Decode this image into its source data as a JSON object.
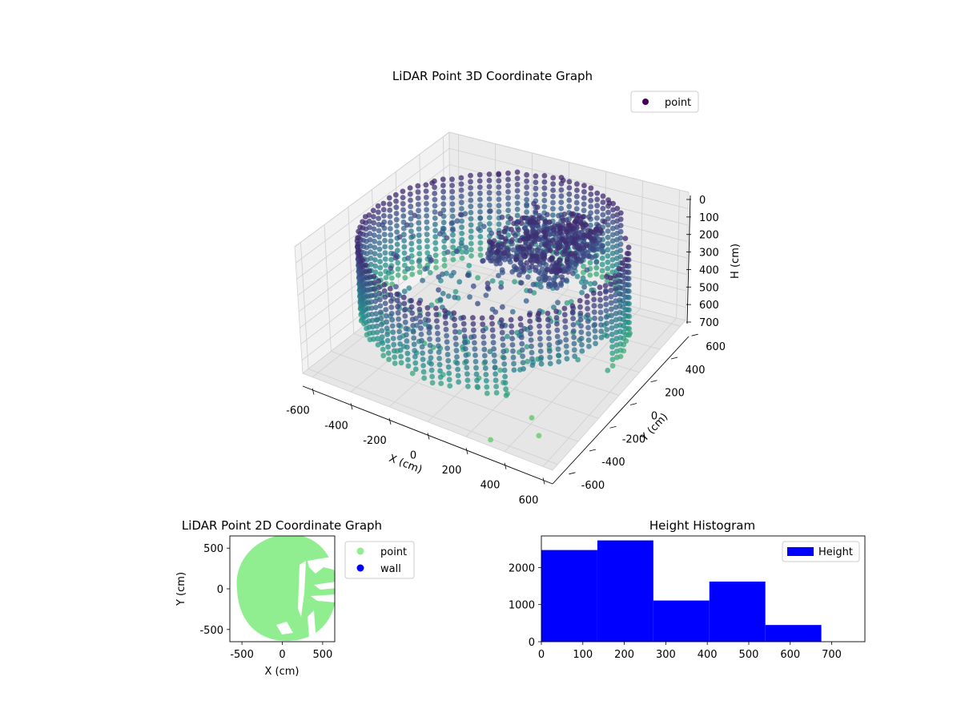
{
  "chart_data": [
    {
      "type": "scatter",
      "projection": "3d",
      "title": "LiDAR Point 3D Coordinate Graph",
      "xlabel": "X (cm)",
      "ylabel": "Y (cm)",
      "zlabel": "H (cm)",
      "xlim": [
        -650,
        650
      ],
      "ylim": [
        -650,
        650
      ],
      "zlim": [
        780,
        0
      ],
      "zaxis_inverted": true,
      "x_ticks": [
        -600,
        -400,
        -200,
        0,
        200,
        400,
        600
      ],
      "y_ticks": [
        -600,
        -400,
        -200,
        0,
        200,
        400,
        600
      ],
      "z_ticks": [
        0,
        100,
        200,
        300,
        400,
        500,
        600,
        700
      ],
      "grid": true,
      "legend": {
        "entries": [
          "point"
        ],
        "placement": "upper-right"
      },
      "colormap": "viridis",
      "series": [
        {
          "name": "point",
          "description_of_shape": "ring of points along the circular wall of radius ~600 cm, plus a dense ceiling-level cluster near x 0..300, y 0..400",
          "points": [
            {
              "x": 0,
              "y": 600,
              "h": 80
            },
            {
              "x": 300,
              "y": 520,
              "h": 80
            },
            {
              "x": 520,
              "y": 300,
              "h": 80
            },
            {
              "x": 600,
              "y": 0,
              "h": 80
            },
            {
              "x": -300,
              "y": 520,
              "h": 80
            },
            {
              "x": -520,
              "y": 300,
              "h": 80
            },
            {
              "x": -600,
              "y": 0,
              "h": 200
            },
            {
              "x": -520,
              "y": -300,
              "h": 400
            },
            {
              "x": -300,
              "y": -520,
              "h": 500
            },
            {
              "x": 0,
              "y": -600,
              "h": 450
            },
            {
              "x": 300,
              "y": -520,
              "h": 400
            },
            {
              "x": 520,
              "y": -300,
              "h": 300
            },
            {
              "x": 150,
              "y": 200,
              "h": 120
            },
            {
              "x": 250,
              "y": 300,
              "h": 150
            },
            {
              "x": 100,
              "y": 100,
              "h": 200
            },
            {
              "x": 420,
              "y": -420,
              "h": 720
            },
            {
              "x": 330,
              "y": -650,
              "h": 740
            },
            {
              "x": 500,
              "y": -500,
              "h": 740
            },
            {
              "x": 650,
              "y": -100,
              "h": 560
            },
            {
              "x": 600,
              "y": 200,
              "h": 560
            }
          ]
        }
      ]
    },
    {
      "type": "scatter",
      "title": "LiDAR Point 2D Coordinate Graph",
      "xlabel": "X (cm)",
      "ylabel": "Y (cm)",
      "xlim": [
        -650,
        650
      ],
      "ylim": [
        -650,
        650
      ],
      "x_ticks": [
        -500,
        0,
        500
      ],
      "y_ticks": [
        -500,
        0,
        500
      ],
      "legend": {
        "entries": [
          "point",
          "wall"
        ],
        "placement": "outside-right"
      },
      "series": [
        {
          "name": "point",
          "color": "#90ee90",
          "description_of_shape": "filled disc of radius ~640 cm centered near x=30, y=0, with a few white gaps on the right side"
        },
        {
          "name": "wall",
          "color": "#0000ff",
          "points": []
        }
      ]
    },
    {
      "type": "bar",
      "histogram": true,
      "title": "Height Histogram",
      "xlabel": "",
      "ylabel": "",
      "xlim": [
        0,
        780
      ],
      "ylim": [
        0,
        2850
      ],
      "x_ticks": [
        0,
        100,
        200,
        300,
        400,
        500,
        600,
        700
      ],
      "y_ticks": [
        0,
        1000,
        2000
      ],
      "legend": {
        "entries": [
          "Height"
        ],
        "placement": "upper-right"
      },
      "series": [
        {
          "name": "Height",
          "color": "#0000ff",
          "bins": [
            {
              "start": 0,
              "end": 135,
              "count": 2470
            },
            {
              "start": 135,
              "end": 270,
              "count": 2730
            },
            {
              "start": 270,
              "end": 405,
              "count": 1110
            },
            {
              "start": 405,
              "end": 540,
              "count": 1620
            },
            {
              "start": 540,
              "end": 675,
              "count": 450
            }
          ]
        }
      ]
    }
  ]
}
